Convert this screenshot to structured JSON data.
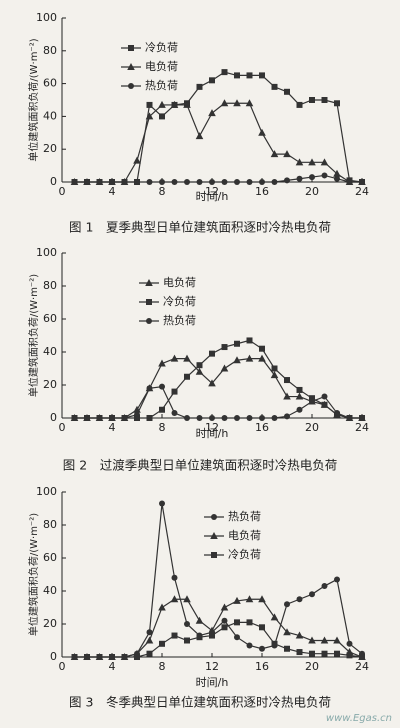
{
  "chart_data": [
    {
      "type": "line",
      "title": "图 1　夏季典型日单位建筑面积逐时冷热电负荷",
      "xlabel": "时间/h",
      "ylabel": "单位建筑面积负荷/(W·m⁻²)",
      "x": [
        1,
        2,
        3,
        4,
        5,
        6,
        7,
        8,
        9,
        10,
        11,
        12,
        13,
        14,
        15,
        16,
        17,
        18,
        19,
        20,
        21,
        22,
        23,
        24
      ],
      "xlim": [
        0,
        24
      ],
      "xticks": [
        0,
        4,
        8,
        12,
        16,
        20,
        24
      ],
      "ylim": [
        0,
        100
      ],
      "yticks": [
        0,
        20,
        40,
        60,
        80,
        100
      ],
      "series": [
        {
          "name": "冷负荷",
          "color": "#333333",
          "marker": "square",
          "values": [
            0,
            0,
            0,
            0,
            0,
            0,
            47,
            40,
            47,
            48,
            58,
            62,
            67,
            65,
            65,
            65,
            58,
            55,
            47,
            50,
            50,
            48,
            1,
            0
          ]
        },
        {
          "name": "电负荷",
          "color": "#333333",
          "marker": "triangle",
          "values": [
            0,
            0,
            0,
            0,
            0,
            13,
            40,
            47,
            47,
            47,
            28,
            42,
            48,
            48,
            48,
            30,
            17,
            17,
            12,
            12,
            12,
            5,
            0,
            0
          ]
        },
        {
          "name": "热负荷",
          "color": "#333333",
          "marker": "circle",
          "values": [
            0,
            0,
            0,
            0,
            0,
            0,
            0,
            0,
            0,
            0,
            0,
            0,
            0,
            0,
            0,
            0,
            0,
            1,
            2,
            3,
            4,
            2,
            0,
            0
          ]
        }
      ]
    },
    {
      "type": "line",
      "title": "图 2　过渡季典型日单位建筑面积逐时冷热电负荷",
      "xlabel": "时间/h",
      "ylabel": "单位建筑面积负荷/(W·m⁻²)",
      "x": [
        1,
        2,
        3,
        4,
        5,
        6,
        7,
        8,
        9,
        10,
        11,
        12,
        13,
        14,
        15,
        16,
        17,
        18,
        19,
        20,
        21,
        22,
        23,
        24
      ],
      "xlim": [
        0,
        24
      ],
      "xticks": [
        0,
        4,
        8,
        12,
        16,
        20,
        24
      ],
      "ylim": [
        0,
        100
      ],
      "yticks": [
        0,
        20,
        40,
        60,
        80,
        100
      ],
      "series": [
        {
          "name": "电负荷",
          "color": "#333333",
          "marker": "triangle",
          "values": [
            0,
            0,
            0,
            0,
            0,
            5,
            18,
            33,
            36,
            36,
            28,
            21,
            30,
            35,
            36,
            36,
            26,
            13,
            13,
            10,
            8,
            2,
            0,
            0
          ]
        },
        {
          "name": "冷负荷",
          "color": "#333333",
          "marker": "square",
          "values": [
            0,
            0,
            0,
            0,
            0,
            0,
            0,
            5,
            16,
            25,
            32,
            39,
            43,
            45,
            47,
            42,
            30,
            23,
            17,
            12,
            8,
            2,
            0,
            0
          ]
        },
        {
          "name": "热负荷",
          "color": "#333333",
          "marker": "circle",
          "values": [
            0,
            0,
            0,
            0,
            0,
            2,
            18,
            19,
            3,
            0,
            0,
            0,
            0,
            0,
            0,
            0,
            0,
            1,
            5,
            10,
            13,
            3,
            0,
            0
          ]
        }
      ]
    },
    {
      "type": "line",
      "title": "图 3　冬季典型日单位建筑面积逐时冷热电负荷",
      "xlabel": "时间/h",
      "ylabel": "单位建筑面积负荷/(W·m⁻²)",
      "x": [
        1,
        2,
        3,
        4,
        5,
        6,
        7,
        8,
        9,
        10,
        11,
        12,
        13,
        14,
        15,
        16,
        17,
        18,
        19,
        20,
        21,
        22,
        23,
        24
      ],
      "xlim": [
        0,
        24
      ],
      "xticks": [
        0,
        4,
        8,
        12,
        16,
        20,
        24
      ],
      "ylim": [
        0,
        100
      ],
      "yticks": [
        0,
        20,
        40,
        60,
        80,
        100
      ],
      "series": [
        {
          "name": "热负荷",
          "color": "#333333",
          "marker": "circle",
          "values": [
            0,
            0,
            0,
            0,
            0,
            2,
            15,
            93,
            48,
            20,
            13,
            15,
            22,
            12,
            7,
            5,
            7,
            32,
            35,
            38,
            43,
            47,
            8,
            2
          ]
        },
        {
          "name": "电负荷",
          "color": "#333333",
          "marker": "triangle",
          "values": [
            0,
            0,
            0,
            0,
            0,
            2,
            10,
            30,
            35,
            35,
            22,
            16,
            30,
            34,
            35,
            35,
            24,
            15,
            13,
            10,
            10,
            10,
            3,
            0
          ]
        },
        {
          "name": "冷负荷",
          "color": "#333333",
          "marker": "square",
          "values": [
            0,
            0,
            0,
            0,
            0,
            0,
            2,
            8,
            13,
            10,
            12,
            13,
            18,
            21,
            21,
            18,
            8,
            5,
            3,
            2,
            2,
            2,
            1,
            0
          ]
        }
      ]
    }
  ],
  "watermark": "www.Egas.cn"
}
